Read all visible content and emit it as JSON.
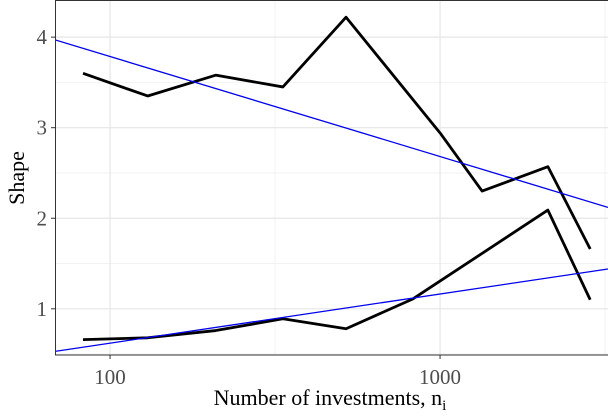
{
  "chart_data": {
    "type": "line",
    "xlabel": "Number of investments, n",
    "xlabel_subscript": "i",
    "ylabel": "Shape",
    "xscale": "log",
    "xlim": [
      68.1,
      3228
    ],
    "ylim": [
      0.49,
      4.41
    ],
    "xticks": [
      100,
      1000
    ],
    "yticks": [
      1,
      2,
      3,
      4
    ],
    "grid": true,
    "series": [
      {
        "color": "#000000",
        "x": [
          82.8,
          130,
          209,
          334,
          519,
          1006,
          1341,
          2122,
          2851
        ],
        "values": [
          3.6,
          3.35,
          3.58,
          3.45,
          4.22,
          2.93,
          2.3,
          2.57,
          1.66
        ]
      },
      {
        "color": "#000000",
        "x": [
          82.8,
          130,
          209,
          334,
          519,
          828,
          2122,
          2851
        ],
        "values": [
          0.66,
          0.68,
          0.76,
          0.89,
          0.78,
          1.11,
          2.09,
          1.1
        ]
      },
      {
        "color": "#0000ee",
        "x": [
          68.1,
          3228
        ],
        "values": [
          3.97,
          2.12
        ]
      },
      {
        "color": "#0000ee",
        "x": [
          68.1,
          3228
        ],
        "values": [
          0.53,
          1.44
        ]
      }
    ]
  }
}
